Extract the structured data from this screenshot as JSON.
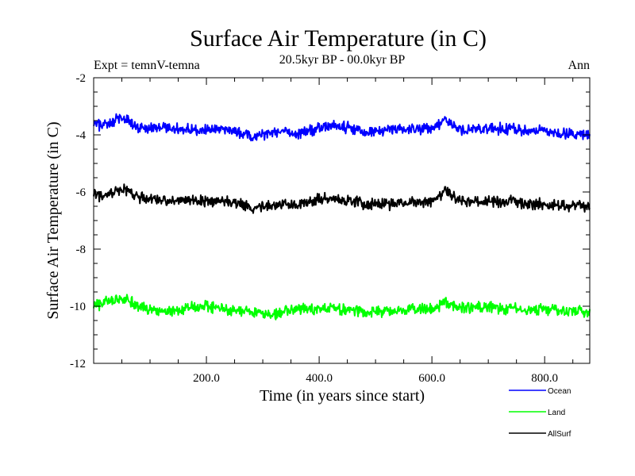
{
  "chart_data": {
    "type": "line",
    "title": "Surface Air Temperature (in C)",
    "subtitle": "20.5kyr BP - 00.0kyr BP",
    "expt_label": "Expt = temnV-temna",
    "season_label": "Ann",
    "xlabel": "Time (in years since start)",
    "ylabel": "Surface Air Temperature (in C)",
    "xlim": [
      0,
      880
    ],
    "ylim": [
      -12,
      -2
    ],
    "x_ticks": [
      {
        "value": 200,
        "label": "200.0"
      },
      {
        "value": 400,
        "label": "400.0"
      },
      {
        "value": 600,
        "label": "600.0"
      },
      {
        "value": 800,
        "label": "800.0"
      }
    ],
    "y_ticks": [
      {
        "value": -2,
        "label": "-2"
      },
      {
        "value": -4,
        "label": "-4"
      },
      {
        "value": -6,
        "label": "-6"
      },
      {
        "value": -8,
        "label": "-8"
      },
      {
        "value": -10,
        "label": "-10"
      },
      {
        "value": -12,
        "label": "-12"
      }
    ],
    "series": [
      {
        "name": "Ocean",
        "color": "#0000ff",
        "anchors": [
          [
            0,
            -3.6
          ],
          [
            20,
            -3.7
          ],
          [
            50,
            -3.4
          ],
          [
            80,
            -3.8
          ],
          [
            120,
            -3.75
          ],
          [
            160,
            -3.8
          ],
          [
            200,
            -3.85
          ],
          [
            240,
            -3.8
          ],
          [
            280,
            -4.05
          ],
          [
            320,
            -3.9
          ],
          [
            360,
            -3.95
          ],
          [
            400,
            -3.75
          ],
          [
            440,
            -3.7
          ],
          [
            480,
            -3.9
          ],
          [
            520,
            -3.85
          ],
          [
            560,
            -3.8
          ],
          [
            600,
            -3.8
          ],
          [
            625,
            -3.5
          ],
          [
            660,
            -3.9
          ],
          [
            700,
            -3.75
          ],
          [
            740,
            -3.8
          ],
          [
            780,
            -3.85
          ],
          [
            820,
            -3.9
          ],
          [
            860,
            -4.0
          ],
          [
            880,
            -4.0
          ]
        ]
      },
      {
        "name": "Land",
        "color": "#00ff00",
        "anchors": [
          [
            0,
            -10.0
          ],
          [
            20,
            -9.9
          ],
          [
            50,
            -9.7
          ],
          [
            80,
            -10.0
          ],
          [
            120,
            -10.2
          ],
          [
            160,
            -10.1
          ],
          [
            200,
            -10.0
          ],
          [
            240,
            -10.1
          ],
          [
            280,
            -10.2
          ],
          [
            320,
            -10.3
          ],
          [
            360,
            -10.1
          ],
          [
            400,
            -10.1
          ],
          [
            440,
            -10.1
          ],
          [
            480,
            -10.2
          ],
          [
            520,
            -10.2
          ],
          [
            560,
            -10.1
          ],
          [
            600,
            -10.1
          ],
          [
            625,
            -9.9
          ],
          [
            660,
            -10.1
          ],
          [
            700,
            -10.0
          ],
          [
            740,
            -10.1
          ],
          [
            780,
            -10.1
          ],
          [
            820,
            -10.1
          ],
          [
            860,
            -10.2
          ],
          [
            880,
            -10.2
          ]
        ]
      },
      {
        "name": "AllSurf",
        "color": "#000000",
        "anchors": [
          [
            0,
            -6.1
          ],
          [
            20,
            -6.2
          ],
          [
            50,
            -5.9
          ],
          [
            80,
            -6.2
          ],
          [
            120,
            -6.3
          ],
          [
            160,
            -6.3
          ],
          [
            200,
            -6.35
          ],
          [
            240,
            -6.3
          ],
          [
            280,
            -6.55
          ],
          [
            320,
            -6.45
          ],
          [
            360,
            -6.45
          ],
          [
            400,
            -6.25
          ],
          [
            440,
            -6.25
          ],
          [
            480,
            -6.4
          ],
          [
            520,
            -6.45
          ],
          [
            560,
            -6.35
          ],
          [
            600,
            -6.35
          ],
          [
            625,
            -6.0
          ],
          [
            660,
            -6.4
          ],
          [
            700,
            -6.3
          ],
          [
            740,
            -6.35
          ],
          [
            780,
            -6.4
          ],
          [
            820,
            -6.45
          ],
          [
            860,
            -6.5
          ],
          [
            880,
            -6.5
          ]
        ]
      }
    ],
    "noise_amplitude": 0.2,
    "legend_position": "bottom-right"
  }
}
